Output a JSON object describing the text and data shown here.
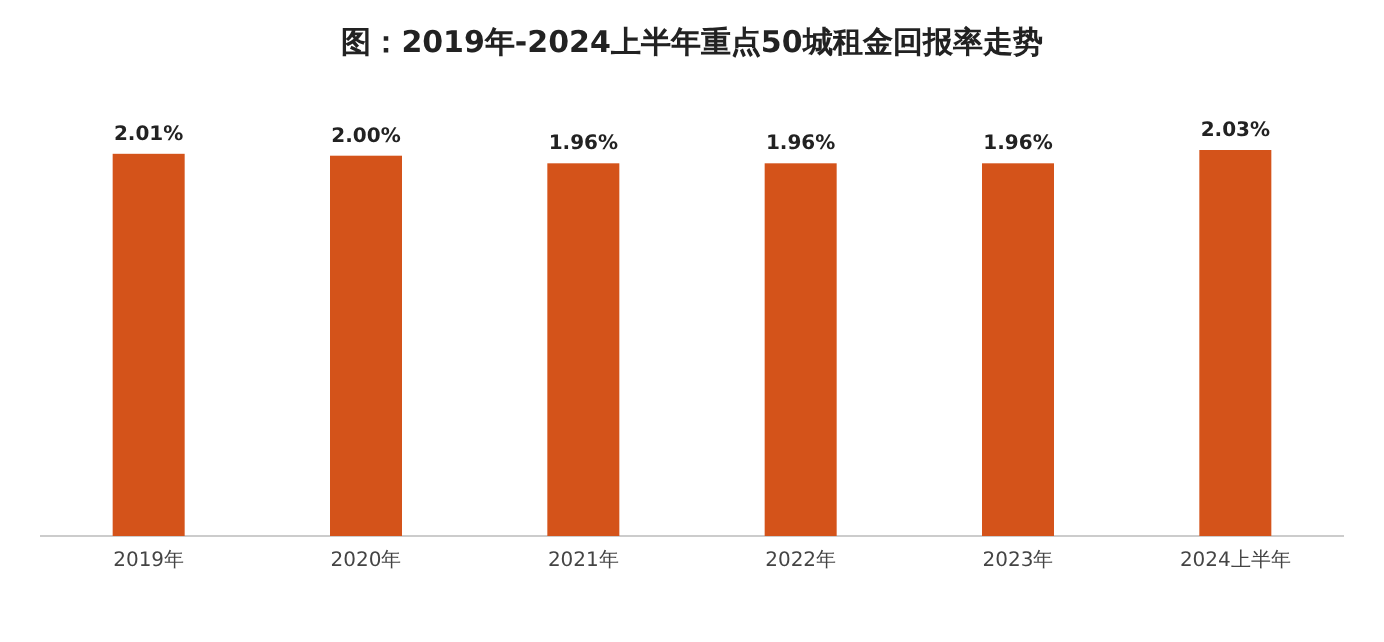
{
  "chart_data": {
    "type": "bar",
    "title": "图：2019年-2024上半年重点50城租金回报率走势",
    "categories": [
      "2019年",
      "2020年",
      "2021年",
      "2022年",
      "2023年",
      "2024上半年"
    ],
    "values": [
      2.01,
      2.0,
      1.96,
      1.96,
      1.96,
      2.03
    ],
    "value_labels": [
      "2.01%",
      "2.00%",
      "1.96%",
      "1.96%",
      "1.96%",
      "2.03%"
    ],
    "color": "#d4531a"
  }
}
